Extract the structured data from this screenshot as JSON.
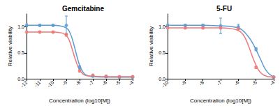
{
  "chart_data": [
    {
      "type": "line",
      "title": "Gemcitabine",
      "x_label": "Concentration (log10[M])",
      "y_label": "Relative viability",
      "xlim": [
        -12,
        -4
      ],
      "xticks": [
        -12,
        -11,
        -10,
        -9,
        -8,
        -7,
        -6,
        -5,
        -4
      ],
      "ylim": [
        0,
        1.25
      ],
      "yticks": [
        {
          "value": 0,
          "label": "0.0"
        },
        {
          "value": 0.5,
          "label": "0.5"
        },
        {
          "value": 1,
          "label": "1.0"
        }
      ],
      "grid": false,
      "series": [
        {
          "type": "scatter",
          "color": "#5b9bd5",
          "marker": "circle",
          "x": [
            -12,
            -11,
            -10,
            -9,
            -8,
            -7,
            -6,
            -5,
            -4
          ],
          "values": [
            1.03,
            1.03,
            1.03,
            1.03,
            0.22,
            0.05,
            0.04,
            0.03,
            0.03
          ],
          "errors": [
            0.03,
            0.02,
            0.02,
            0.18,
            0.03,
            0.01,
            0.01,
            0.01,
            0.01
          ]
        },
        {
          "type": "scatter",
          "color": "#f07878",
          "marker": "circle",
          "x": [
            -12,
            -11,
            -10,
            -9,
            -8,
            -7,
            -6,
            -5,
            -4
          ],
          "values": [
            0.9,
            0.9,
            0.9,
            0.85,
            0.15,
            0.07,
            0.05,
            0.04,
            0.04
          ],
          "errors": [
            0.02,
            0.02,
            0.02,
            0.03,
            0.02,
            0.01,
            0.01,
            0.01,
            0.01
          ]
        },
        {
          "type": "line",
          "color": "#5b9bd5",
          "line_style": "solid",
          "x": [
            -12,
            -11,
            -10,
            -9.5,
            -9,
            -8.75,
            -8.5,
            -8.25,
            -8,
            -7.75,
            -7.5,
            -7,
            -6,
            -5,
            -4
          ],
          "values": [
            1.03,
            1.03,
            1.03,
            1.02,
            0.98,
            0.9,
            0.72,
            0.48,
            0.26,
            0.13,
            0.07,
            0.04,
            0.03,
            0.03,
            0.03
          ]
        },
        {
          "type": "line",
          "color": "#f07878",
          "line_style": "solid",
          "x": [
            -12,
            -11,
            -10,
            -9.5,
            -9,
            -8.75,
            -8.5,
            -8.25,
            -8,
            -7.75,
            -7.5,
            -7,
            -6,
            -5,
            -4
          ],
          "values": [
            0.9,
            0.9,
            0.9,
            0.89,
            0.83,
            0.72,
            0.52,
            0.32,
            0.17,
            0.09,
            0.06,
            0.05,
            0.04,
            0.04,
            0.04
          ]
        }
      ]
    },
    {
      "type": "line",
      "title": "5-FU",
      "x_label": "Concentration (log10[M])",
      "y_label": "Relative viability",
      "xlim": [
        -10,
        -4
      ],
      "xticks": [
        -10,
        -9,
        -8,
        -7,
        -6,
        -5,
        -4
      ],
      "ylim": [
        0,
        1.25
      ],
      "yticks": [
        {
          "value": 0,
          "label": "0.0"
        },
        {
          "value": 0.5,
          "label": "0.5"
        },
        {
          "value": 1,
          "label": "1.0"
        }
      ],
      "grid": false,
      "series": [
        {
          "type": "scatter",
          "color": "#5b9bd5",
          "marker": "circle",
          "x": [
            -10,
            -9,
            -8,
            -7,
            -6,
            -5,
            -4
          ],
          "values": [
            1.03,
            1.03,
            1.03,
            1.02,
            1.0,
            0.57,
            0.03
          ],
          "errors": [
            0.02,
            0.02,
            0.02,
            0.15,
            0.05,
            0.03,
            0.01
          ]
        },
        {
          "type": "scatter",
          "color": "#f07878",
          "marker": "circle",
          "x": [
            -10,
            -9,
            -8,
            -7,
            -6,
            -5,
            -4
          ],
          "values": [
            0.98,
            0.98,
            0.98,
            0.98,
            0.97,
            0.22,
            0.03
          ],
          "errors": [
            0.02,
            0.02,
            0.02,
            0.02,
            0.02,
            0.02,
            0.01
          ]
        },
        {
          "type": "line",
          "color": "#5b9bd5",
          "line_style": "solid",
          "x": [
            -10,
            -8,
            -7,
            -6.5,
            -6,
            -5.75,
            -5.5,
            -5.25,
            -5,
            -4.75,
            -4.5,
            -4.25,
            -4
          ],
          "values": [
            1.03,
            1.03,
            1.02,
            1.01,
            0.98,
            0.93,
            0.84,
            0.72,
            0.56,
            0.38,
            0.2,
            0.09,
            0.04
          ]
        },
        {
          "type": "line",
          "color": "#f07878",
          "line_style": "solid",
          "x": [
            -10,
            -8,
            -7,
            -6.5,
            -6,
            -5.75,
            -5.5,
            -5.25,
            -5,
            -4.75,
            -4.5,
            -4.25,
            -4
          ],
          "values": [
            0.98,
            0.98,
            0.98,
            0.97,
            0.93,
            0.86,
            0.7,
            0.47,
            0.26,
            0.12,
            0.06,
            0.04,
            0.03
          ]
        }
      ]
    }
  ]
}
